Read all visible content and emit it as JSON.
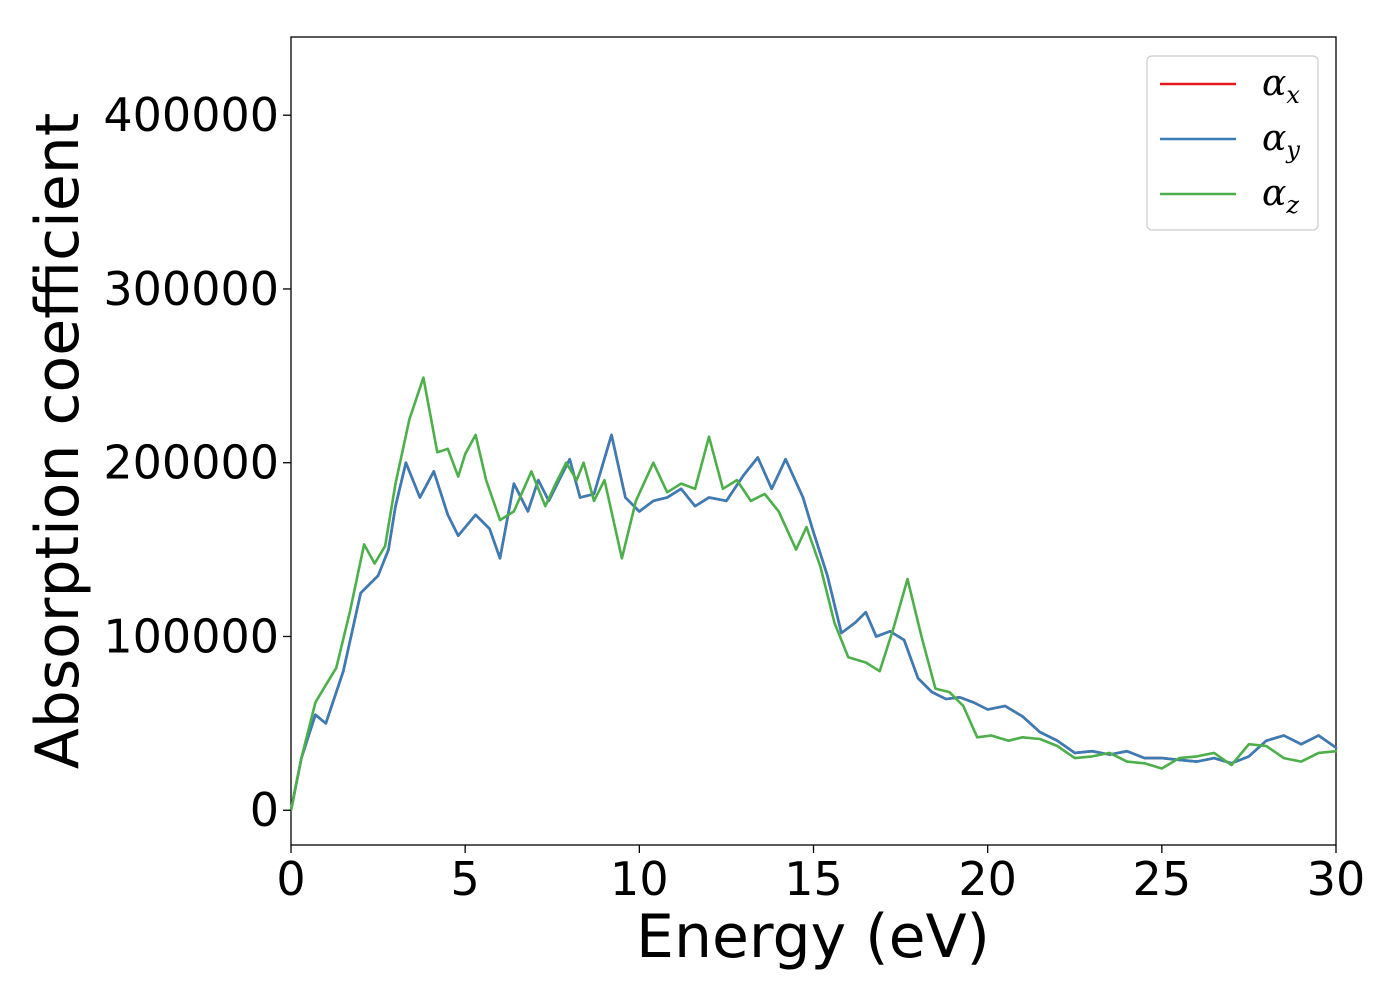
{
  "chart_data": {
    "type": "line",
    "xlabel": "Energy (eV)",
    "ylabel": "Absorption coefficient",
    "xlim": [
      0,
      30
    ],
    "ylim": [
      -20000,
      445000
    ],
    "xticks": [
      0,
      5,
      10,
      15,
      20,
      25,
      30
    ],
    "yticks": [
      0,
      100000,
      200000,
      300000,
      400000
    ],
    "grid": false,
    "legend_position": "top-right",
    "series": [
      {
        "name": "αx",
        "symbol": "α",
        "subscript": "x",
        "color": "#e41a1c",
        "x": [
          0,
          0.3,
          0.7,
          1.0,
          1.5,
          2.0,
          2.5,
          2.8,
          3.0,
          3.3,
          3.7,
          4.1,
          4.5,
          4.8,
          5.3,
          5.7,
          6.0,
          6.4,
          6.8,
          7.1,
          7.4,
          7.7,
          8.0,
          8.3,
          8.7,
          9.2,
          9.6,
          10.0,
          10.4,
          10.8,
          11.2,
          11.6,
          12.0,
          12.5,
          13.0,
          13.4,
          13.8,
          14.2,
          14.7,
          15.0,
          15.4,
          15.8,
          16.2,
          16.5,
          16.8,
          17.2,
          17.6,
          18.0,
          18.4,
          18.8,
          19.2,
          19.6,
          20.0,
          20.5,
          21.0,
          21.5,
          22.0,
          22.5,
          23.0,
          23.5,
          24.0,
          24.5,
          25.0,
          25.5,
          26.0,
          26.5,
          27.0,
          27.5,
          28.0,
          28.5,
          29.0,
          29.5,
          30.0
        ],
        "y": [
          0,
          30000,
          55000,
          50000,
          80000,
          125000,
          135000,
          150000,
          175000,
          200000,
          180000,
          195000,
          170000,
          158000,
          170000,
          162000,
          145000,
          188000,
          172000,
          190000,
          178000,
          190000,
          202000,
          180000,
          182000,
          216000,
          180000,
          172000,
          178000,
          180000,
          185000,
          175000,
          180000,
          178000,
          193000,
          203000,
          185000,
          202000,
          180000,
          160000,
          135000,
          102000,
          108000,
          114000,
          100000,
          103000,
          98000,
          76000,
          68000,
          64000,
          65000,
          62000,
          58000,
          60000,
          54000,
          45000,
          40000,
          33000,
          34000,
          32000,
          34000,
          30000,
          30000,
          29000,
          28000,
          30000,
          27000,
          31000,
          40000,
          43000,
          38000,
          43000,
          36000
        ]
      },
      {
        "name": "αy",
        "symbol": "α",
        "subscript": "y",
        "color": "#377eb8",
        "x": [
          0,
          0.3,
          0.7,
          1.0,
          1.5,
          2.0,
          2.5,
          2.8,
          3.0,
          3.3,
          3.7,
          4.1,
          4.5,
          4.8,
          5.3,
          5.7,
          6.0,
          6.4,
          6.8,
          7.1,
          7.4,
          7.7,
          8.0,
          8.3,
          8.7,
          9.2,
          9.6,
          10.0,
          10.4,
          10.8,
          11.2,
          11.6,
          12.0,
          12.5,
          13.0,
          13.4,
          13.8,
          14.2,
          14.7,
          15.0,
          15.4,
          15.8,
          16.2,
          16.5,
          16.8,
          17.2,
          17.6,
          18.0,
          18.4,
          18.8,
          19.2,
          19.6,
          20.0,
          20.5,
          21.0,
          21.5,
          22.0,
          22.5,
          23.0,
          23.5,
          24.0,
          24.5,
          25.0,
          25.5,
          26.0,
          26.5,
          27.0,
          27.5,
          28.0,
          28.5,
          29.0,
          29.5,
          30.0
        ],
        "y": [
          0,
          30000,
          55000,
          50000,
          80000,
          125000,
          135000,
          150000,
          175000,
          200000,
          180000,
          195000,
          170000,
          158000,
          170000,
          162000,
          145000,
          188000,
          172000,
          190000,
          178000,
          190000,
          202000,
          180000,
          182000,
          216000,
          180000,
          172000,
          178000,
          180000,
          185000,
          175000,
          180000,
          178000,
          193000,
          203000,
          185000,
          202000,
          180000,
          160000,
          135000,
          102000,
          108000,
          114000,
          100000,
          103000,
          98000,
          76000,
          68000,
          64000,
          65000,
          62000,
          58000,
          60000,
          54000,
          45000,
          40000,
          33000,
          34000,
          32000,
          34000,
          30000,
          30000,
          29000,
          28000,
          30000,
          27000,
          31000,
          40000,
          43000,
          38000,
          43000,
          36000
        ]
      },
      {
        "name": "αz",
        "symbol": "α",
        "subscript": "z",
        "color": "#4daf4a",
        "x": [
          0,
          0.3,
          0.7,
          1.0,
          1.3,
          1.7,
          2.1,
          2.4,
          2.7,
          3.0,
          3.4,
          3.8,
          4.2,
          4.5,
          4.8,
          5.0,
          5.3,
          5.6,
          6.0,
          6.4,
          6.9,
          7.3,
          7.6,
          7.9,
          8.2,
          8.4,
          8.7,
          9.0,
          9.5,
          9.9,
          10.4,
          10.8,
          11.2,
          11.6,
          12.0,
          12.4,
          12.8,
          13.2,
          13.6,
          14.0,
          14.5,
          14.8,
          15.2,
          15.6,
          16.0,
          16.5,
          16.9,
          17.3,
          17.7,
          18.1,
          18.5,
          18.9,
          19.3,
          19.7,
          20.1,
          20.6,
          21.0,
          21.5,
          22.0,
          22.5,
          23.0,
          23.5,
          24.0,
          24.5,
          25.0,
          25.5,
          26.0,
          26.5,
          27.0,
          27.5,
          28.0,
          28.5,
          29.0,
          29.5,
          30.0
        ],
        "y": [
          0,
          30000,
          62000,
          72000,
          82000,
          115000,
          153000,
          142000,
          152000,
          188000,
          225000,
          249000,
          206000,
          208000,
          192000,
          205000,
          216000,
          190000,
          167000,
          172000,
          195000,
          175000,
          188000,
          200000,
          190000,
          200000,
          178000,
          190000,
          145000,
          178000,
          200000,
          183000,
          188000,
          185000,
          215000,
          185000,
          190000,
          178000,
          182000,
          172000,
          150000,
          163000,
          140000,
          108000,
          88000,
          85000,
          80000,
          105000,
          133000,
          100000,
          70000,
          68000,
          60000,
          42000,
          43000,
          40000,
          42000,
          41000,
          37000,
          30000,
          31000,
          33000,
          28000,
          27000,
          24000,
          30000,
          31000,
          33000,
          26000,
          38000,
          37000,
          30000,
          28000,
          33000,
          34000
        ]
      }
    ]
  }
}
